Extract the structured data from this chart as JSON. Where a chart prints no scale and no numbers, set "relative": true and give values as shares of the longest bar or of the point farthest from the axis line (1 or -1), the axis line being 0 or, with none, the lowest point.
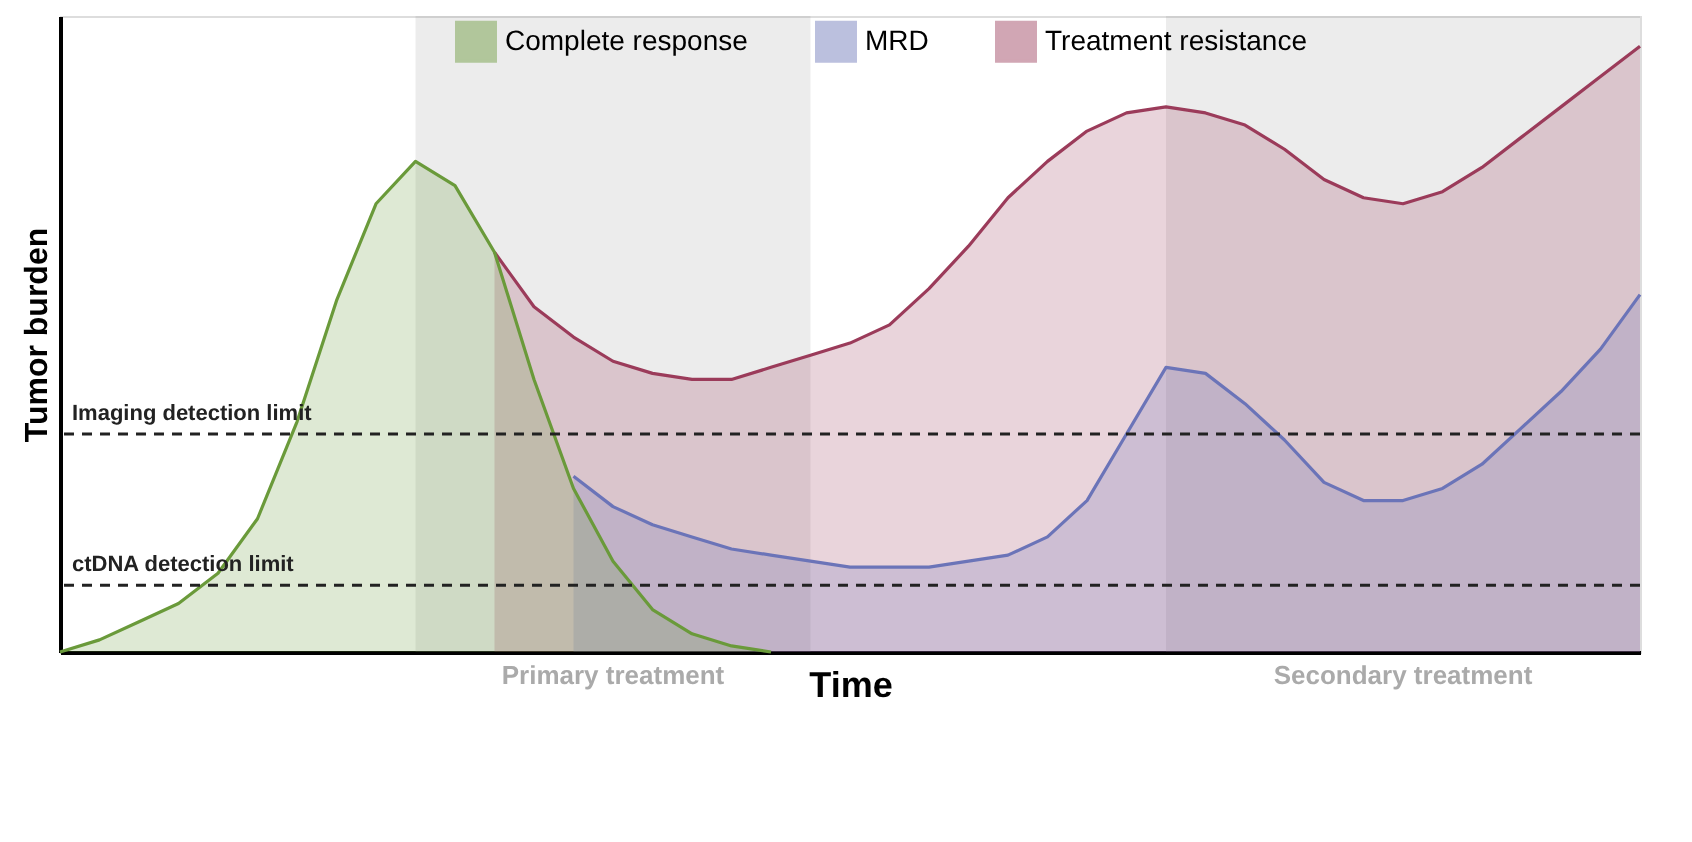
{
  "chart_data": {
    "type": "area",
    "xlabel": "Time",
    "ylabel": "Tumor burden",
    "relative": true,
    "grid": false,
    "annotations": [
      "Primary treatment",
      "Secondary treatment"
    ],
    "legend": "top",
    "line_style": "solid",
    "marker": "none",
    "categories": [
      null,
      null,
      null,
      null,
      null,
      null,
      null,
      null,
      null,
      null,
      null,
      null,
      null,
      null,
      null,
      null,
      null,
      null,
      null,
      null,
      null,
      null,
      null,
      null,
      null,
      null,
      null,
      null,
      null,
      null,
      null,
      null,
      null,
      null,
      null,
      null,
      null,
      null,
      null,
      null,
      null
    ],
    "series": [
      {
        "name": "Complete response",
        "color": "#6a9a3a",
        "values": [
          0,
          0.02,
          0.05,
          0.08,
          0.13,
          0.22,
          0.38,
          0.58,
          0.74,
          0.81,
          0.77,
          0.66,
          0.45,
          0.27,
          0.15,
          0.07,
          0.03,
          0.01,
          0,
          null,
          null,
          null,
          null,
          null,
          null,
          null,
          null,
          null,
          null,
          null,
          null,
          null,
          null,
          null,
          null,
          null,
          null,
          null,
          null,
          null,
          null
        ]
      },
      {
        "name": "MRD",
        "color": "#6b74b8",
        "values": [
          null,
          null,
          null,
          null,
          null,
          null,
          null,
          null,
          null,
          null,
          null,
          null,
          null,
          0.29,
          0.24,
          0.21,
          0.19,
          0.17,
          0.16,
          0.15,
          0.14,
          0.14,
          0.14,
          0.15,
          0.16,
          0.19,
          0.25,
          0.36,
          0.47,
          0.46,
          0.41,
          0.35,
          0.28,
          0.25,
          0.25,
          0.27,
          0.31,
          0.37,
          0.43,
          0.5,
          0.59
        ]
      },
      {
        "name": "Treatment resistance",
        "color": "#9b3b5a",
        "values": [
          null,
          null,
          null,
          null,
          null,
          null,
          null,
          null,
          null,
          null,
          null,
          0.66,
          0.57,
          0.52,
          0.48,
          0.46,
          0.45,
          0.45,
          0.47,
          0.49,
          0.51,
          0.54,
          0.6,
          0.67,
          0.75,
          0.81,
          0.86,
          0.89,
          0.9,
          0.89,
          0.87,
          0.83,
          0.78,
          0.75,
          0.74,
          0.76,
          0.8,
          0.85,
          0.9,
          0.95,
          1.0
        ]
      }
    ],
    "ref_lines": [
      {
        "axis": "y",
        "value": 0.36,
        "label": "Imaging detection limit",
        "line_style": "dashed",
        "color": "#222222"
      },
      {
        "axis": "y",
        "value": 0.11,
        "label": "ctDNA detection limit",
        "line_style": "dashed",
        "color": "#222222"
      }
    ]
  }
}
